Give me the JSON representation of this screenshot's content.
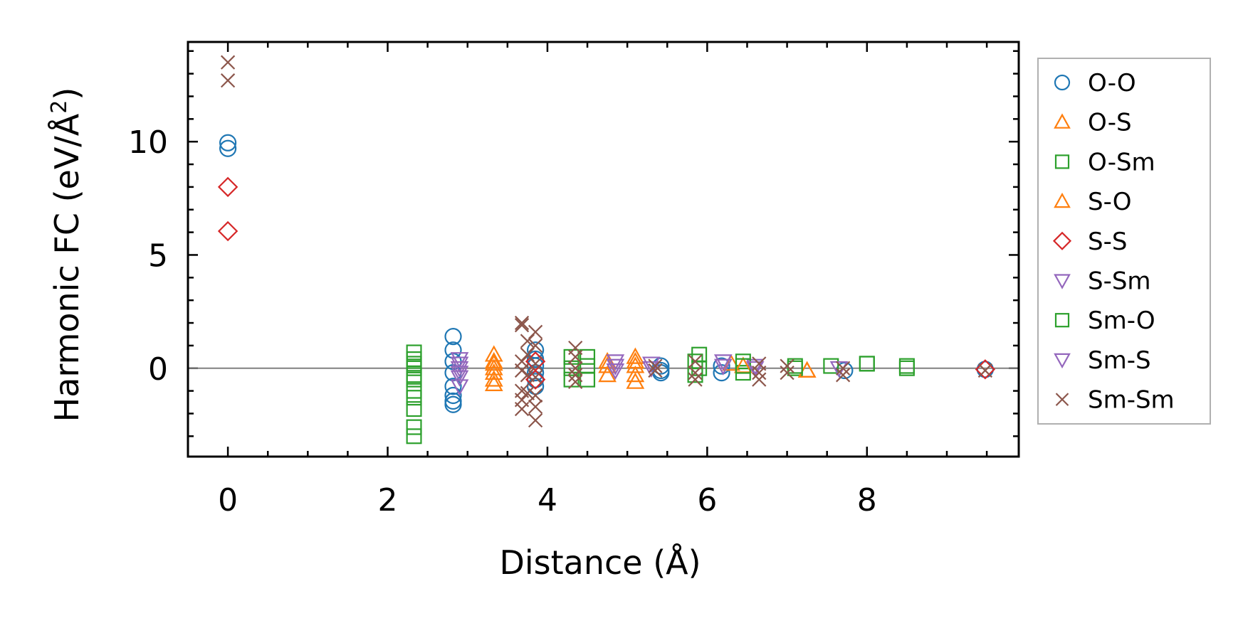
{
  "chart_data": {
    "type": "scatter",
    "xlabel": "Distance (Å)",
    "ylabel": "Harmonic FC (eV/Å²)",
    "ylabel_main": "Harmonic FC (eV/Å",
    "ylabel_sup": "2",
    "ylabel_end": ")",
    "xlim": [
      -0.5,
      9.9
    ],
    "ylim": [
      -3.9,
      14.4
    ],
    "xticks": [
      0,
      2,
      4,
      6,
      8
    ],
    "xtick_labels": [
      "0",
      "2",
      "4",
      "6",
      "8"
    ],
    "yticks": [
      0,
      5,
      10
    ],
    "ytick_labels": [
      "0",
      "5",
      "10"
    ],
    "grid": false,
    "legend_position": "outside-right",
    "reference_line_y": 0,
    "series": [
      {
        "name": "O-O",
        "marker": "circle",
        "color": "#1f77b4",
        "x": [
          0,
          0,
          2.82,
          2.82,
          2.82,
          2.82,
          2.82,
          2.82,
          2.82,
          2.82,
          3.85,
          3.85,
          3.85,
          3.85,
          3.85,
          3.85,
          5.42,
          5.42,
          5.42,
          6.18,
          6.18,
          7.72,
          9.48
        ],
        "y": [
          9.95,
          9.7,
          1.4,
          0.8,
          0.3,
          -0.2,
          -0.8,
          -1.2,
          -1.45,
          -1.6,
          0.8,
          0.4,
          0.1,
          -0.2,
          -0.5,
          -0.8,
          0.1,
          -0.1,
          -0.2,
          0.1,
          -0.2,
          -0.1,
          -0.05
        ]
      },
      {
        "name": "O-S",
        "marker": "triangle-up",
        "color": "#ff7f0e",
        "x": [
          3.33,
          3.33,
          3.33,
          3.33,
          3.33,
          3.33,
          4.75,
          4.75,
          5.1,
          5.1,
          5.1,
          5.1,
          6.3,
          7.25
        ],
        "y": [
          0.6,
          0.3,
          0.0,
          -0.2,
          -0.5,
          -0.7,
          0.3,
          -0.3,
          0.5,
          0.1,
          -0.3,
          -0.6,
          0.2,
          -0.1
        ]
      },
      {
        "name": "O-Sm",
        "marker": "square",
        "color": "#2ca02c",
        "x": [
          2.33,
          2.33,
          2.33,
          2.33,
          2.33,
          2.33,
          2.33,
          2.33,
          2.33,
          4.3,
          4.3,
          4.5,
          4.5,
          5.85,
          5.85,
          5.9,
          6.45,
          6.45,
          7.1,
          7.55,
          8.0,
          8.5
        ],
        "y": [
          0.7,
          0.4,
          0.0,
          -0.5,
          -1.0,
          -1.3,
          -1.8,
          -2.6,
          -3.0,
          0.5,
          -0.5,
          0.5,
          -0.5,
          0.3,
          -0.3,
          0.6,
          0.3,
          -0.2,
          0.0,
          0.1,
          0.2,
          0.0
        ]
      },
      {
        "name": "S-O",
        "marker": "triangle-up",
        "color": "#ff7f0e",
        "x": [
          3.33,
          4.75,
          5.1,
          6.45,
          7.25
        ],
        "y": [
          0.2,
          0.1,
          0.3,
          0.1,
          -0.1
        ]
      },
      {
        "name": "S-S",
        "marker": "diamond",
        "color": "#d62728",
        "x": [
          0,
          0,
          3.85,
          3.85,
          9.48
        ],
        "y": [
          8.0,
          6.05,
          0.3,
          -0.5,
          -0.05
        ]
      },
      {
        "name": "S-Sm",
        "marker": "triangle-down",
        "color": "#9467bd",
        "x": [
          2.9,
          2.9,
          2.9,
          2.9,
          4.85,
          4.85,
          5.3,
          6.2,
          6.6,
          7.65
        ],
        "y": [
          0.4,
          0.0,
          -0.4,
          -0.8,
          0.3,
          -0.1,
          0.2,
          0.3,
          0.1,
          0.0
        ]
      },
      {
        "name": "Sm-O",
        "marker": "square",
        "color": "#2ca02c",
        "x": [
          2.33,
          2.33,
          4.3,
          4.5,
          5.9,
          6.45,
          7.1,
          8.0,
          8.5
        ],
        "y": [
          0.2,
          -0.3,
          0.0,
          0.1,
          0.0,
          0.1,
          0.1,
          0.2,
          0.1
        ]
      },
      {
        "name": "Sm-S",
        "marker": "triangle-down",
        "color": "#9467bd",
        "x": [
          2.9,
          2.9,
          4.85,
          5.3,
          6.2,
          6.6
        ],
        "y": [
          0.2,
          -0.2,
          0.1,
          0.0,
          0.1,
          0.0
        ]
      },
      {
        "name": "Sm-Sm",
        "marker": "x",
        "color": "#8c564b",
        "x": [
          0,
          0,
          3.68,
          3.68,
          3.68,
          3.68,
          3.68,
          3.68,
          3.68,
          3.75,
          3.75,
          3.75,
          3.75,
          3.85,
          3.85,
          3.85,
          3.85,
          3.85,
          3.85,
          3.85,
          4.35,
          4.35,
          4.35,
          4.35,
          4.35,
          5.35,
          5.35,
          5.85,
          5.85,
          5.85,
          6.65,
          6.65,
          6.65,
          7.0,
          7.0,
          7.7,
          7.7,
          9.48
        ],
        "y": [
          13.5,
          12.7,
          2.0,
          1.9,
          0.3,
          -0.1,
          -1.0,
          -1.4,
          -1.8,
          1.2,
          0.6,
          -0.3,
          -1.1,
          1.6,
          1.0,
          0.2,
          -0.4,
          -1.2,
          -1.7,
          -2.3,
          0.9,
          0.5,
          0.0,
          -0.3,
          -0.6,
          0.1,
          -0.1,
          0.3,
          -0.2,
          -0.5,
          0.2,
          -0.2,
          -0.5,
          0.1,
          -0.2,
          0.0,
          -0.3,
          -0.1
        ]
      }
    ]
  }
}
